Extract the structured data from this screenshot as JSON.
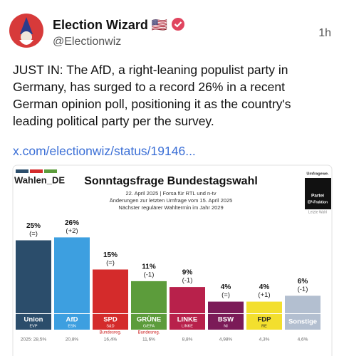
{
  "post": {
    "name": "Election Wizard 🇺🇸",
    "handle": "@Electionwiz",
    "time": "1h",
    "text_lines": [
      "JUST IN: The AfD, a right-leaning populist party in",
      "Germany, has surged to a record 26% in a recent",
      "German opinion poll, positioning it as the country's",
      "leading political party per the survey."
    ],
    "link": "x.com/electionwiz/status/19146..."
  },
  "chart_data": {
    "type": "bar",
    "title": "Sonntagsfrage Bundestagswahl",
    "subtitle_lines": [
      "22. April 2025 | Forsa für RTL und n-tv",
      "Änderungen zur letzten Umfrage vom 15. April 2025",
      "Nächster regulärer Wahltermin im Jahr 2029"
    ],
    "source": "Wahlen_DE",
    "side_labels": [
      "Umfragewe.",
      "Partei",
      "EP-Fraktion",
      "Letzte Wahl"
    ],
    "categories": [
      "Union",
      "AfD",
      "SPD",
      "GRÜNE",
      "LINKE",
      "BSW",
      "FDP",
      "Sonstige"
    ],
    "groups": [
      "EVP",
      "ESN",
      "S&D",
      "G/EFA",
      "LINKE",
      "NI",
      "RE",
      null
    ],
    "values": [
      25,
      26,
      15,
      11,
      9,
      4,
      4,
      6
    ],
    "value_labels": [
      "25%",
      "26%",
      "15%",
      "11%",
      "9%",
      "4%",
      "4%",
      "6%"
    ],
    "changes": [
      "(=)",
      "(+2)",
      "(=)",
      "(-1)",
      "(-1)",
      "(=)",
      "(+1)",
      "(-1)"
    ],
    "notes": [
      null,
      null,
      "Bundesreg.",
      "Bundesreg.",
      null,
      null,
      null,
      null
    ],
    "last_election": [
      "2025: 28,5%",
      "20,8%",
      "16,4%",
      "11,6%",
      "8,8%",
      "4,98%",
      "4,3%",
      "4,6%"
    ],
    "colors": [
      "#2b4d6b",
      "#3d9fe0",
      "#d42b2b",
      "#5c9c3b",
      "#b8214b",
      "#7b1b58",
      "#f3df2e",
      "#b3bfd0"
    ]
  }
}
